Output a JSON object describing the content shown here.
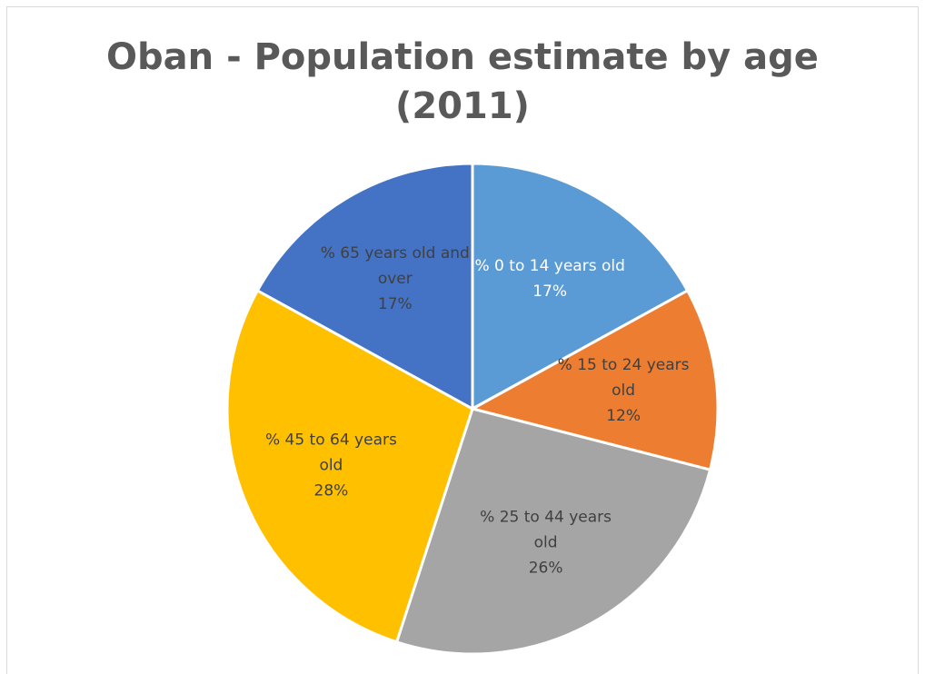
{
  "chart_data": {
    "type": "pie",
    "title_lines": [
      "Oban - Population estimate by age",
      "(2011)"
    ],
    "categories": [
      "% 0 to 14 years old",
      "% 15 to 24 years old",
      "% 25 to 44 years old",
      "% 45 to 64 years old",
      "% 65 years old and over"
    ],
    "values": [
      17,
      12,
      26,
      28,
      17
    ],
    "value_labels": [
      "17%",
      "12%",
      "26%",
      "28%",
      "17%"
    ],
    "label_lines": [
      [
        "% 0 to 14 years old",
        "17%"
      ],
      [
        "% 15 to 24 years",
        "old",
        "12%"
      ],
      [
        "% 25 to 44 years",
        "old",
        "26%"
      ],
      [
        "% 45 to 64 years",
        "old",
        "28%"
      ],
      [
        "% 65 years old and",
        "over",
        "17%"
      ]
    ],
    "colors": [
      "#5b9bd5",
      "#ed7d31",
      "#a5a5a5",
      "#ffc000",
      "#4472c4"
    ],
    "label_colors": [
      "#ffffff",
      "#404040",
      "#404040",
      "#404040",
      "#404040"
    ],
    "legend": "none",
    "start_angle": "12 o'clock, clockwise"
  }
}
